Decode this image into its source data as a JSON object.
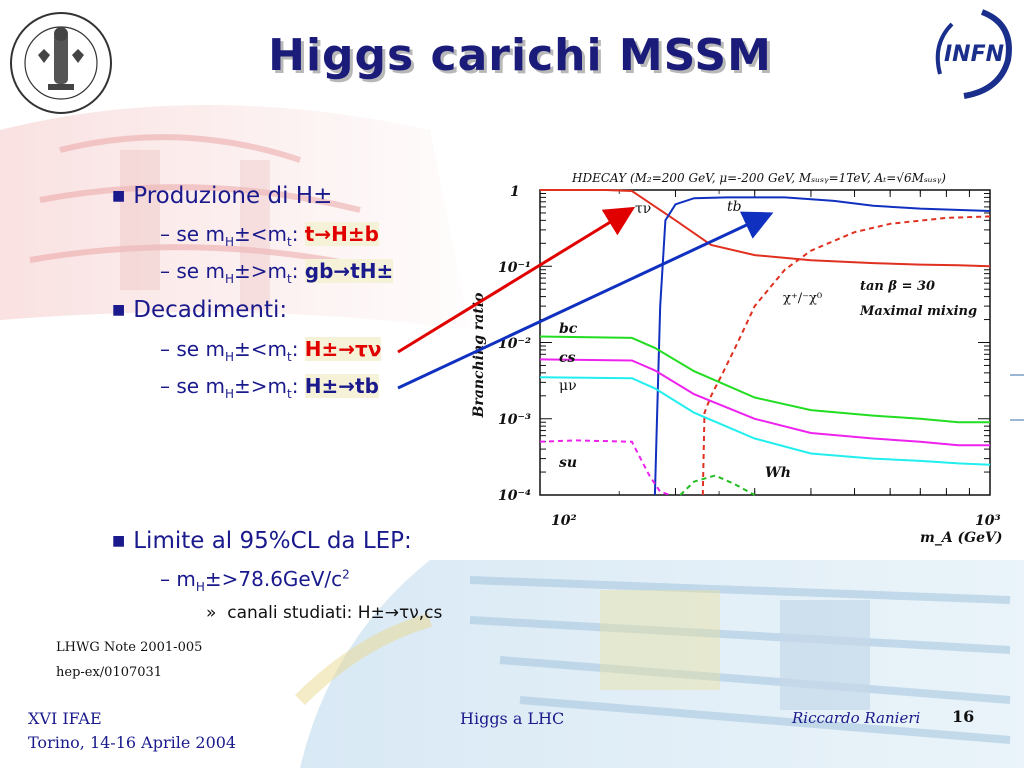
{
  "title": "Higgs carichi MSSM",
  "bullets": {
    "produzione": "Produzione di H±",
    "p1_prefix": "se m",
    "p1_sub": "H",
    "p1_mid": "±<m",
    "p1_sub2": "t",
    "p1_colon": ": ",
    "p1_process": "t→H±b",
    "p2_prefix": "se m",
    "p2_sub": "H",
    "p2_mid": "±>m",
    "p2_sub2": "t",
    "p2_colon": ": ",
    "p2_process": "gb→tH±",
    "decadimenti": "Decadimenti:",
    "d1_prefix": "se m",
    "d1_sub": "H",
    "d1_mid": "±<m",
    "d1_sub2": "t",
    "d1_colon": ": ",
    "d1_process": "H±→τν",
    "d2_prefix": "se m",
    "d2_sub": "H",
    "d2_mid": "±>m",
    "d2_sub2": "t",
    "d2_colon": ": ",
    "d2_process": "H±→tb",
    "limite": "Limite al 95%CL da LEP:",
    "lim_prefix": "m",
    "lim_sub": "H",
    "lim_value": "±>78.6GeV/c",
    "lim_sup": "2",
    "canali_marker": "»",
    "canali": "canali studiati: H±→τν,cs"
  },
  "notes": [
    "LHWG Note 2001-005",
    "hep-ex/0107031"
  ],
  "footer": {
    "left_line1": "XVI IFAE",
    "left_line2": "Torino, 14-16 Aprile 2004",
    "center": "Higgs a LHC",
    "author": "Riccardo Ranieri",
    "page": "16"
  },
  "logos": {
    "left_seal_text": "FLORENTINA · STVDIORVM · VNIVERSITAS",
    "right_logo_text": "INFN"
  },
  "colors": {
    "title": "#1b1b7a",
    "text": "#1a1a8c",
    "red": "#e00000",
    "tb": "#1030c0",
    "tn": "#e03020",
    "bc": "#22dd22",
    "cs": "#ee22ee",
    "mn": "#22eeee"
  },
  "chart_data": {
    "type": "line",
    "title": "HDECAY (M₂=200 GeV, μ=-200 GeV, Mₛᵤₛᵧ=1TeV, Aₜ=√6Mₛᵤₛᵧ)",
    "xlabel": "m_A (GeV)",
    "ylabel": "Branching ratio",
    "xlim": [
      100,
      1000
    ],
    "ylim": [
      0.0001,
      1
    ],
    "x_scale": "log",
    "y_scale": "log",
    "x_ticks": [
      "10²",
      "10³"
    ],
    "y_ticks": [
      "1",
      "10⁻¹",
      "10⁻²",
      "10⁻³",
      "10⁻⁴"
    ],
    "annotations": [
      "tan β = 30",
      "Maximal mixing"
    ],
    "series": [
      {
        "name": "τν",
        "color": "#e03020",
        "dash": false,
        "x": [
          100,
          140,
          160,
          200,
          240,
          300,
          400,
          550,
          700,
          850,
          1000
        ],
        "y": [
          1,
          1,
          0.97,
          0.4,
          0.19,
          0.14,
          0.12,
          0.11,
          0.105,
          0.103,
          0.1
        ]
      },
      {
        "name": "tb",
        "color": "#1030c0",
        "dash": false,
        "x": [
          180,
          182,
          185,
          190,
          200,
          220,
          260,
          350,
          450,
          550,
          700,
          1000
        ],
        "y": [
          0.0001,
          0.001,
          0.03,
          0.4,
          0.65,
          0.78,
          0.8,
          0.8,
          0.72,
          0.62,
          0.57,
          0.53
        ]
      },
      {
        "name": "χ⁺/⁻χ⁰",
        "color": "#e03020",
        "dash": true,
        "x": [
          230,
          232,
          240,
          255,
          275,
          300,
          350,
          400,
          500,
          600,
          800,
          1000
        ],
        "y": [
          0.0001,
          0.0012,
          0.002,
          0.004,
          0.01,
          0.03,
          0.09,
          0.16,
          0.28,
          0.36,
          0.43,
          0.45
        ]
      },
      {
        "name": "bc",
        "color": "#22dd22",
        "dash": false,
        "x": [
          100,
          160,
          180,
          220,
          300,
          400,
          550,
          700,
          850,
          1000
        ],
        "y": [
          0.012,
          0.0115,
          0.0085,
          0.0042,
          0.0019,
          0.0013,
          0.0011,
          0.001,
          0.0009,
          0.0009
        ]
      },
      {
        "name": "cs",
        "color": "#ee22ee",
        "dash": false,
        "x": [
          100,
          160,
          180,
          220,
          300,
          400,
          550,
          700,
          850,
          1000
        ],
        "y": [
          0.006,
          0.0058,
          0.0043,
          0.0021,
          0.001,
          0.00065,
          0.00055,
          0.0005,
          0.00045,
          0.00045
        ]
      },
      {
        "name": "μν",
        "color": "#22eeee",
        "dash": false,
        "x": [
          100,
          160,
          180,
          220,
          300,
          400,
          550,
          700,
          850,
          1000
        ],
        "y": [
          0.0035,
          0.0034,
          0.0025,
          0.0012,
          0.00055,
          0.00035,
          0.0003,
          0.00028,
          0.00026,
          0.00025
        ]
      },
      {
        "name": "su",
        "color": "#ee22ee",
        "dash": true,
        "x": [
          100,
          120,
          160,
          165,
          175,
          185,
          195
        ],
        "y": [
          0.0005,
          0.00052,
          0.0005,
          0.00035,
          0.00018,
          0.00011,
          0.0001
        ]
      },
      {
        "name": "Wh",
        "color": "#22bb22",
        "dash": true,
        "x": [
          205,
          220,
          245,
          270,
          300
        ],
        "y": [
          0.0001,
          0.00015,
          0.00018,
          0.00014,
          0.0001
        ]
      }
    ]
  }
}
